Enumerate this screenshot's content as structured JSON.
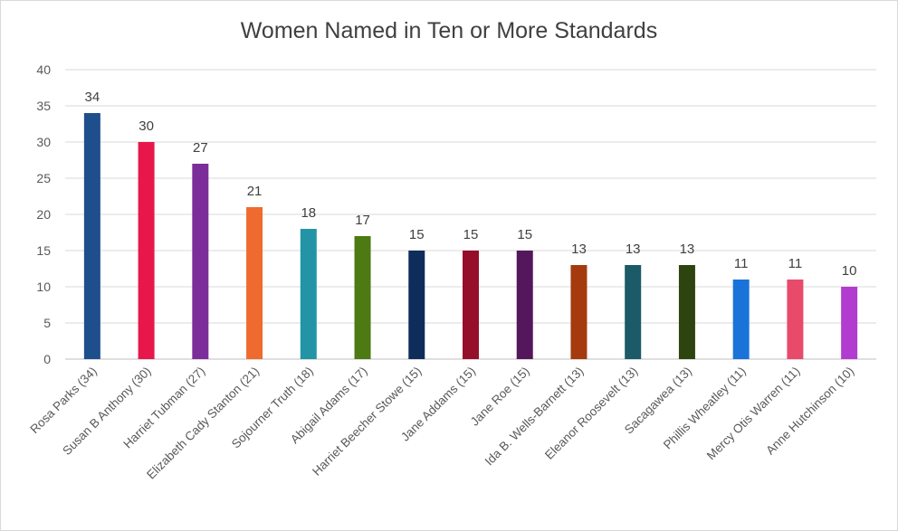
{
  "chart_data": {
    "type": "bar",
    "title": "Women Named in Ten or More Standards",
    "xlabel": "",
    "ylabel": "",
    "ylim": [
      0,
      40
    ],
    "yticks": [
      0,
      5,
      10,
      15,
      20,
      25,
      30,
      35,
      40
    ],
    "grid": true,
    "legend": "none",
    "categories": [
      "Rosa Parks (34)",
      "Susan B Anthony (30)",
      "Harriet Tubman (27)",
      "Elizabeth Cady Stanton (21)",
      "Sojourner Truth (18)",
      "Abigail Adams (17)",
      "Harriet Beecher Stowe (15)",
      "Jane Addams (15)",
      "Jane Roe (15)",
      "Ida B. Wells-Barnett (13)",
      "Eleanor Roosevelt (13)",
      "Sacagawea (13)",
      "Phillis Wheatley (11)",
      "Mercy Otis Warren (11)",
      "Anne Hutchinson (10)"
    ],
    "values": [
      34,
      30,
      27,
      21,
      18,
      17,
      15,
      15,
      15,
      13,
      13,
      13,
      11,
      11,
      10
    ],
    "colors": [
      "#1f4e8c",
      "#e8174b",
      "#7b2d9a",
      "#ef6a2f",
      "#2294a6",
      "#4d7a12",
      "#0f2d5a",
      "#960f2a",
      "#55175c",
      "#a43a0e",
      "#1b5a66",
      "#2e4410",
      "#1a73d9",
      "#e84a6a",
      "#b23ccf"
    ]
  }
}
